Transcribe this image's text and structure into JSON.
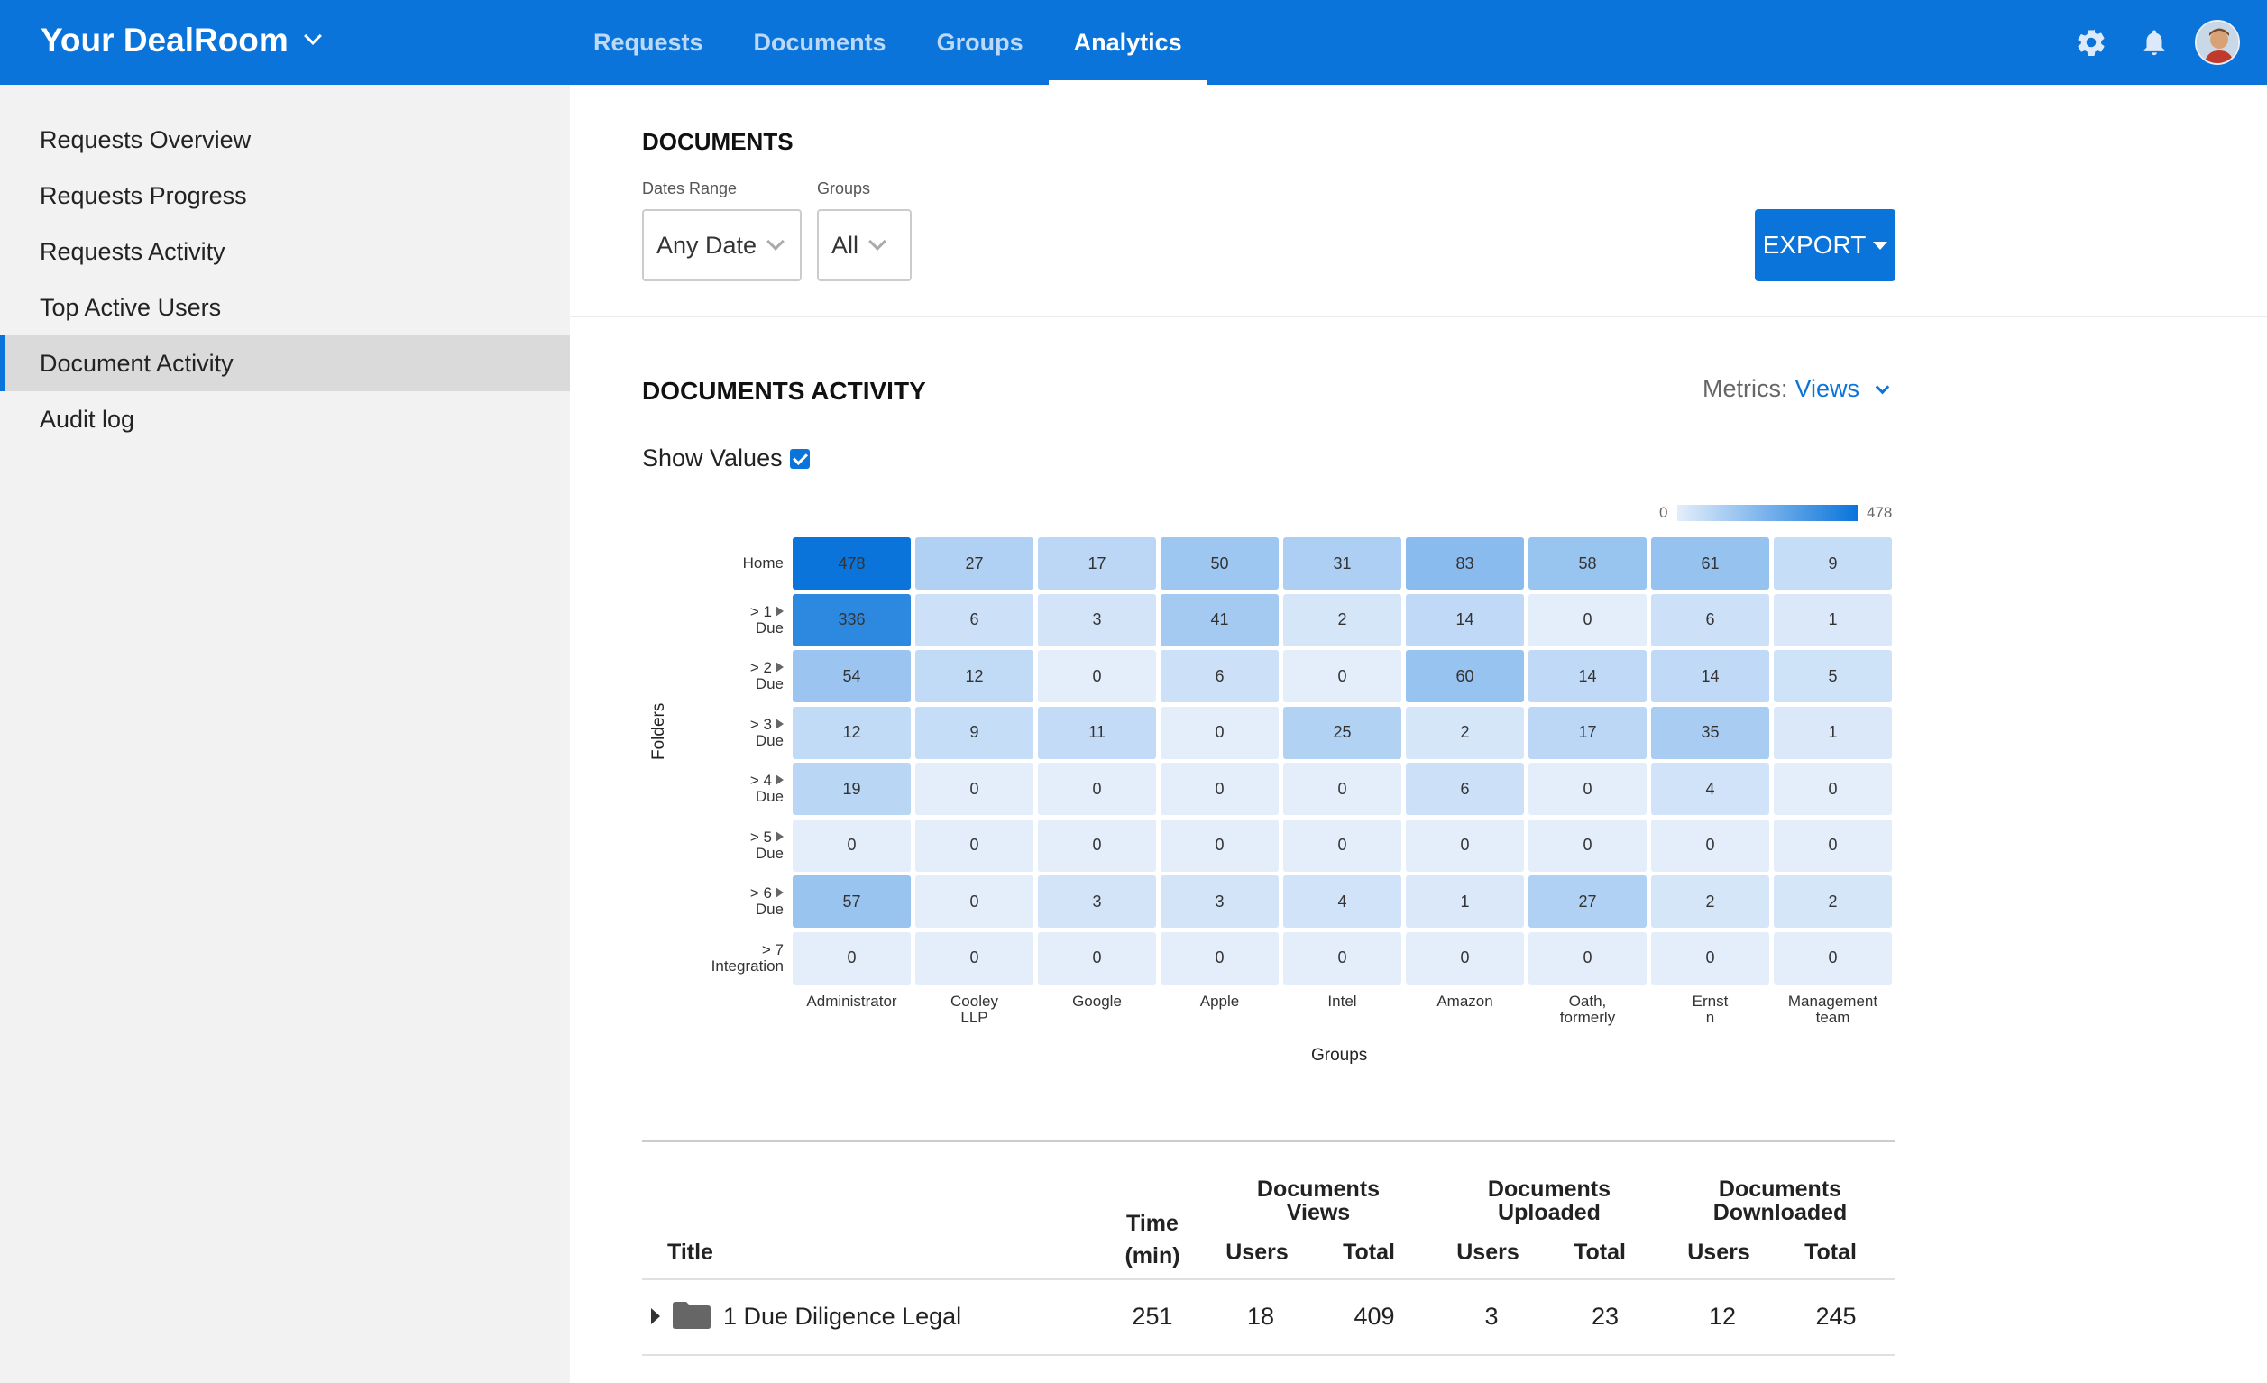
{
  "app": {
    "brand": "Your DealRoom",
    "nav_tabs": [
      "Requests",
      "Documents",
      "Groups",
      "Analytics"
    ],
    "active_tab": "Analytics",
    "icons": [
      "gear-icon",
      "bell-icon",
      "avatar"
    ],
    "accent_color": "#0a74db"
  },
  "sidebar": {
    "items": [
      "Requests Overview",
      "Requests Progress",
      "Requests Activity",
      "Top Active Users",
      "Document Activity",
      "Audit log"
    ],
    "active_item": "Document Activity"
  },
  "documents": {
    "title": "DOCUMENTS",
    "dates_range_label": "Dates Range",
    "dates_range_value": "Any Date",
    "groups_label": "Groups",
    "groups_value": "All",
    "export_label": "EXPORT"
  },
  "activity": {
    "title": "DOCUMENTS ACTIVITY",
    "metrics_label": "Metrics:",
    "metrics_value": "Views",
    "show_values_label": "Show Values",
    "show_values_checked": true
  },
  "chart_data": {
    "type": "heatmap",
    "xlabel": "Groups",
    "ylabel": "Folders",
    "color_scale": {
      "min": 0,
      "max": 478,
      "min_color": "#e4eefb",
      "max_color": "#0a74db"
    },
    "rows": [
      [
        "Home"
      ],
      [
        "> 1",
        "Due"
      ],
      [
        "> 2",
        "Due"
      ],
      [
        "> 3",
        "Due"
      ],
      [
        "> 4",
        "Due"
      ],
      [
        "> 5",
        "Due"
      ],
      [
        "> 6",
        "Due"
      ],
      [
        "> 7",
        "Integration"
      ]
    ],
    "row_has_arrow": [
      false,
      true,
      true,
      true,
      true,
      true,
      true,
      false
    ],
    "columns": [
      [
        "Administrator"
      ],
      [
        "Cooley",
        "LLP"
      ],
      [
        "Google"
      ],
      [
        "Apple"
      ],
      [
        "Intel"
      ],
      [
        "Amazon"
      ],
      [
        "Oath,",
        "formerly"
      ],
      [
        "Ernst",
        "n"
      ],
      [
        "Management",
        "team"
      ]
    ],
    "values": [
      [
        478,
        27,
        17,
        50,
        31,
        83,
        58,
        61,
        9
      ],
      [
        336,
        6,
        3,
        41,
        2,
        14,
        0,
        6,
        1
      ],
      [
        54,
        12,
        0,
        6,
        0,
        60,
        14,
        14,
        5
      ],
      [
        12,
        9,
        11,
        0,
        25,
        2,
        17,
        35,
        1
      ],
      [
        19,
        0,
        0,
        0,
        0,
        6,
        0,
        4,
        0
      ],
      [
        0,
        0,
        0,
        0,
        0,
        0,
        0,
        0,
        0
      ],
      [
        57,
        0,
        3,
        3,
        4,
        1,
        27,
        2,
        2
      ],
      [
        0,
        0,
        0,
        0,
        0,
        0,
        0,
        0,
        0
      ]
    ]
  },
  "table": {
    "headers": {
      "title": "Title",
      "time_line1": "Time",
      "time_line2": "(min)",
      "views_group_line1": "Documents",
      "views_group_line2": "Views",
      "uploaded_group_line1": "Documents",
      "uploaded_group_line2": "Uploaded",
      "downloaded_group_line1": "Documents",
      "downloaded_group_line2": "Downloaded",
      "users": "Users",
      "total": "Total"
    },
    "rows": [
      {
        "title": "1 Due Diligence Legal",
        "time": "251",
        "views_users": "18",
        "views_total": "409",
        "uploaded_users": "3",
        "uploaded_total": "23",
        "downloaded_users": "12",
        "downloaded_total": "245"
      }
    ]
  }
}
